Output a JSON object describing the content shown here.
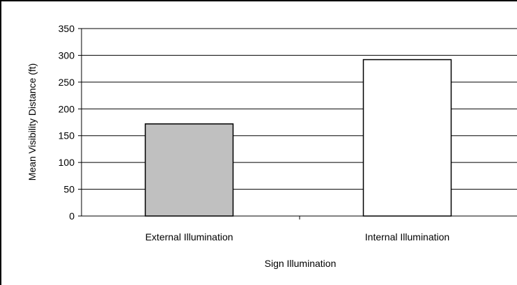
{
  "chart_data": {
    "type": "bar",
    "title": "",
    "xlabel": "Sign Illumination",
    "ylabel": "Mean Visibility Distance (ft)",
    "categories": [
      "External Illumination",
      "Internal Illumination"
    ],
    "values": [
      172,
      292
    ],
    "bar_colors": [
      "#c0c0c0",
      "#ffffff"
    ],
    "ylim": [
      0,
      350
    ],
    "yticks": [
      "0",
      "50",
      "100",
      "150",
      "200",
      "250",
      "300",
      "350"
    ],
    "grid": true,
    "legend": "none"
  }
}
